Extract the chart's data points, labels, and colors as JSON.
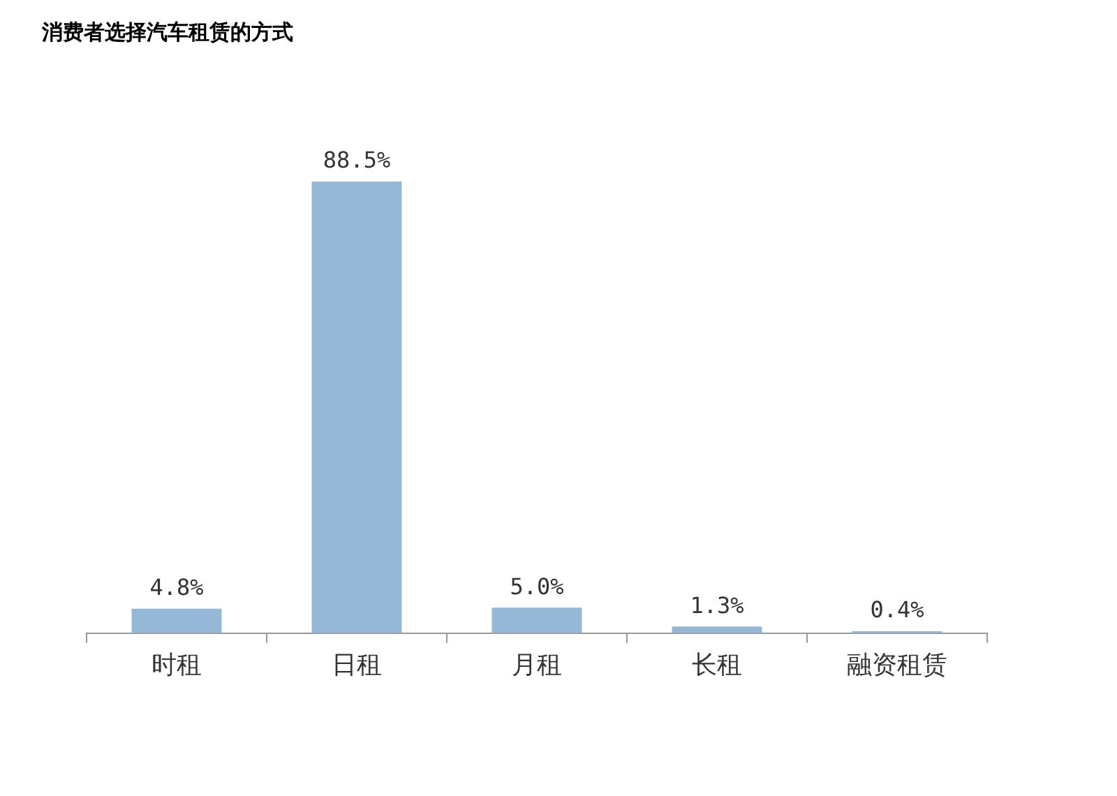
{
  "chart_data": {
    "type": "bar",
    "title": "消费者选择汽车租赁的方式",
    "categories": [
      "时租",
      "日租",
      "月租",
      "长租",
      "融资租赁"
    ],
    "values": [
      4.8,
      88.5,
      5.0,
      1.3,
      0.4
    ],
    "value_labels": [
      "4.8%",
      "88.5%",
      "5.0%",
      "1.3%",
      "0.4%"
    ],
    "color": "#94b8d6",
    "tick_labels": "x",
    "grid": false,
    "legend": false
  }
}
